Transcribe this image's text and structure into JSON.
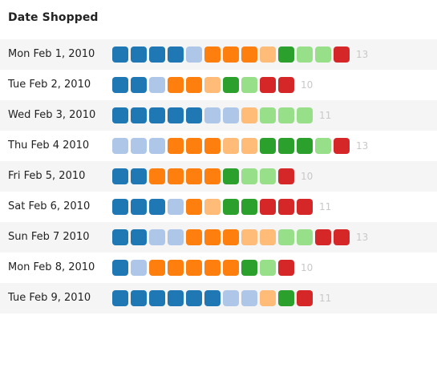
{
  "header": {
    "title": "Date Shopped"
  },
  "palette": {
    "dark_blue": "#1f77b4",
    "light_blue": "#aec7e8",
    "orange": "#ff7f0e",
    "light_orange": "#ffbb78",
    "green": "#2ca02c",
    "light_green": "#98df8a",
    "red": "#d62728"
  },
  "rows": [
    {
      "date": "Mon Feb 1, 2010",
      "count": "13",
      "squares": [
        "dark_blue",
        "dark_blue",
        "dark_blue",
        "dark_blue",
        "light_blue",
        "orange",
        "orange",
        "orange",
        "light_orange",
        "green",
        "light_green",
        "light_green",
        "red"
      ]
    },
    {
      "date": "Tue Feb 2, 2010",
      "count": "10",
      "squares": [
        "dark_blue",
        "dark_blue",
        "light_blue",
        "orange",
        "orange",
        "light_orange",
        "green",
        "light_green",
        "red",
        "red"
      ]
    },
    {
      "date": "Wed Feb 3, 2010",
      "count": "11",
      "squares": [
        "dark_blue",
        "dark_blue",
        "dark_blue",
        "dark_blue",
        "dark_blue",
        "light_blue",
        "light_blue",
        "light_orange",
        "light_green",
        "light_green",
        "light_green"
      ]
    },
    {
      "date": "Thu Feb 4 2010",
      "count": "13",
      "squares": [
        "light_blue",
        "light_blue",
        "light_blue",
        "orange",
        "orange",
        "orange",
        "light_orange",
        "light_orange",
        "green",
        "green",
        "green",
        "light_green",
        "red"
      ]
    },
    {
      "date": "Fri Feb 5, 2010",
      "count": "10",
      "squares": [
        "dark_blue",
        "dark_blue",
        "orange",
        "orange",
        "orange",
        "orange",
        "green",
        "light_green",
        "light_green",
        "red"
      ]
    },
    {
      "date": "Sat Feb 6, 2010",
      "count": "11",
      "squares": [
        "dark_blue",
        "dark_blue",
        "dark_blue",
        "light_blue",
        "orange",
        "light_orange",
        "green",
        "green",
        "red",
        "red",
        "red"
      ]
    },
    {
      "date": "Sun Feb 7 2010",
      "count": "13",
      "squares": [
        "dark_blue",
        "dark_blue",
        "light_blue",
        "light_blue",
        "orange",
        "orange",
        "orange",
        "light_orange",
        "light_orange",
        "light_green",
        "light_green",
        "red",
        "red"
      ]
    },
    {
      "date": "Mon Feb 8, 2010",
      "count": "10",
      "squares": [
        "dark_blue",
        "light_blue",
        "orange",
        "orange",
        "orange",
        "orange",
        "orange",
        "green",
        "light_green",
        "red"
      ]
    },
    {
      "date": "Tue Feb 9, 2010",
      "count": "11",
      "squares": [
        "dark_blue",
        "dark_blue",
        "dark_blue",
        "dark_blue",
        "dark_blue",
        "dark_blue",
        "light_blue",
        "light_blue",
        "light_orange",
        "green",
        "red"
      ]
    }
  ]
}
